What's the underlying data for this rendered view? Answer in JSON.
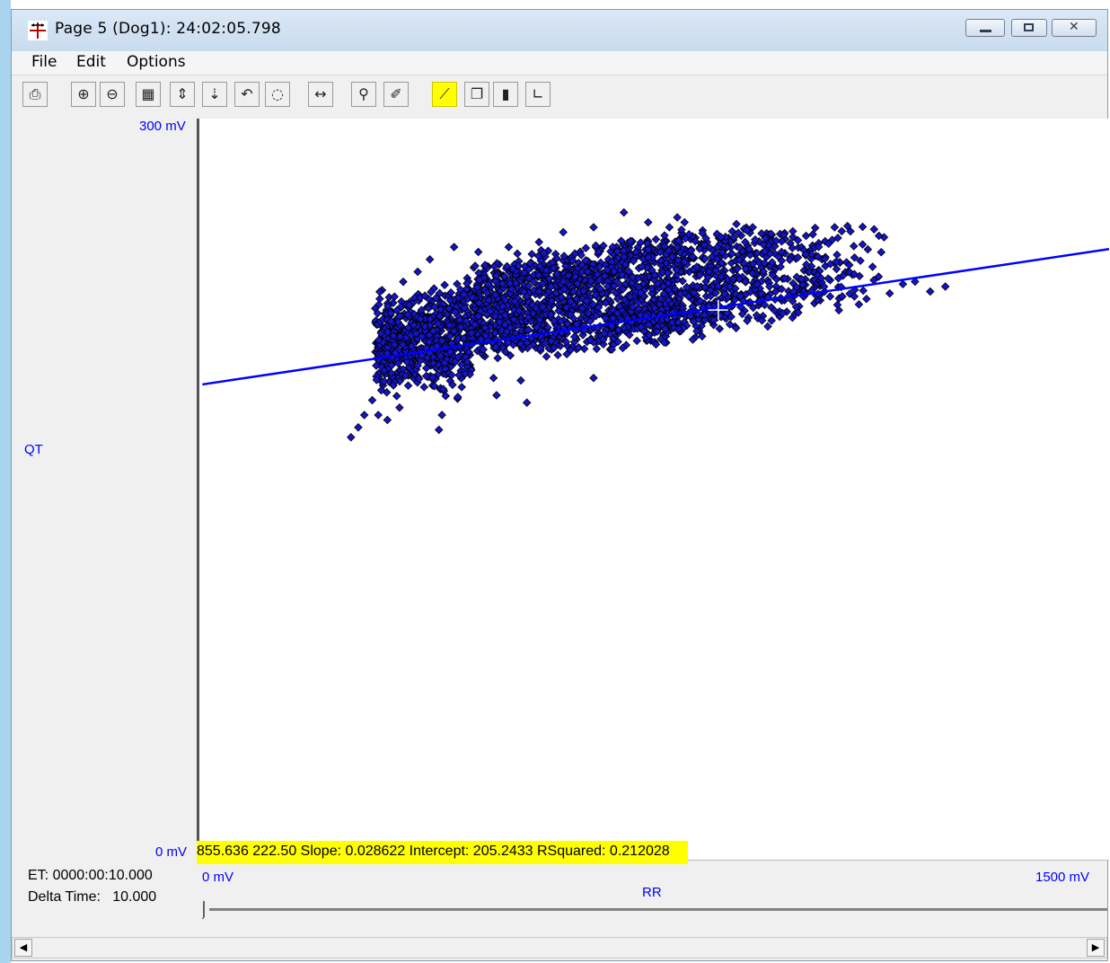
{
  "window": {
    "title": "Page 5 (Dog1): 24:02:05.798",
    "controls": [
      "minimize",
      "maximize",
      "close"
    ]
  },
  "menu": {
    "items": [
      "File",
      "Edit",
      "Options"
    ]
  },
  "toolbar": {
    "buttons": [
      {
        "name": "print-icon",
        "glyph": "⎙"
      },
      {
        "name": "zoom-in-icon",
        "glyph": "⊕"
      },
      {
        "name": "zoom-out-icon",
        "glyph": "⊖"
      },
      {
        "name": "fit-icon",
        "glyph": "▦"
      },
      {
        "name": "expand-vertical-icon",
        "glyph": "⇕"
      },
      {
        "name": "compress-vertical-icon",
        "glyph": "⇣"
      },
      {
        "name": "undo-icon",
        "glyph": "↶"
      },
      {
        "name": "lasso-icon",
        "glyph": "◌"
      },
      {
        "name": "horizontal-arrows-icon",
        "glyph": "↔"
      },
      {
        "name": "marker-icon",
        "glyph": "⚲"
      },
      {
        "name": "eraser-icon",
        "glyph": "✐"
      },
      {
        "name": "regression-line-icon",
        "glyph": "⟋",
        "active": true
      },
      {
        "name": "copy-icon",
        "glyph": "❐"
      },
      {
        "name": "histogram-icon",
        "glyph": "▮"
      },
      {
        "name": "log-scale-icon",
        "glyph": "∟"
      }
    ],
    "highlight_color": "#ffff00"
  },
  "plot": {
    "y_max_label": "300 mV",
    "y_min_label": "0 mV",
    "y_axis_label": "QT",
    "x_min_label": "0 mV",
    "x_max_label": "1500 mV",
    "x_axis_label": "RR",
    "stats_text": "855.636  222.50  Slope: 0.028622  Intercept: 205.2433 RSquared: 0.212028"
  },
  "status": {
    "et": "ET: 0000:00:10.000",
    "delta_time": "Delta Time:   10.000"
  },
  "chart_data": {
    "type": "scatter",
    "xlabel": "RR",
    "ylabel": "QT",
    "xlim": [
      0,
      1500
    ],
    "ylim": [
      0,
      300
    ],
    "x_unit": "mV",
    "y_unit": "mV",
    "point_color": "#1414c8",
    "point_edge_color": "#000000",
    "line_color": "#0000ff",
    "regression": {
      "slope": 0.028622,
      "intercept": 205.2433,
      "r_squared": 0.212028
    },
    "cursor": {
      "x": 855.636,
      "y": 222.5
    },
    "cluster": {
      "x_min": 250,
      "x_max": 1230,
      "y_min": 165,
      "y_max": 265,
      "center_x": 600,
      "center_y": 222
    },
    "points": [
      [
        250,
        171
      ],
      [
        262,
        175
      ],
      [
        272,
        180
      ],
      [
        285,
        186
      ],
      [
        295,
        180
      ],
      [
        310,
        178
      ],
      [
        330,
        183
      ],
      [
        395,
        174
      ],
      [
        400,
        180
      ],
      [
        490,
        188
      ],
      [
        485,
        195
      ],
      [
        540,
        185
      ],
      [
        530,
        194
      ],
      [
        650,
        195
      ],
      [
        668,
        213
      ],
      [
        680,
        216
      ],
      [
        840,
        224
      ],
      [
        775,
        256
      ],
      [
        788,
        260
      ],
      [
        795,
        255
      ],
      [
        870,
        248
      ],
      [
        930,
        249
      ],
      [
        1000,
        245
      ],
      [
        1080,
        237
      ],
      [
        1120,
        236
      ],
      [
        1180,
        234
      ],
      [
        1230,
        232
      ],
      [
        1205,
        230
      ],
      [
        1160,
        233
      ],
      [
        1110,
        240
      ],
      [
        1050,
        242
      ],
      [
        960,
        246
      ],
      [
        900,
        250
      ],
      [
        860,
        252
      ],
      [
        800,
        258
      ],
      [
        740,
        258
      ],
      [
        700,
        262
      ],
      [
        650,
        256
      ],
      [
        600,
        254
      ],
      [
        560,
        250
      ],
      [
        510,
        248
      ],
      [
        460,
        246
      ],
      [
        420,
        248
      ],
      [
        380,
        243
      ],
      [
        360,
        238
      ],
      [
        330,
        220
      ],
      [
        320,
        212
      ],
      [
        310,
        205
      ],
      [
        305,
        198
      ],
      [
        300,
        190
      ],
      [
        320,
        192
      ],
      [
        340,
        196
      ],
      [
        360,
        200
      ],
      [
        380,
        205
      ],
      [
        400,
        210
      ],
      [
        420,
        214
      ],
      [
        440,
        218
      ],
      [
        460,
        220
      ],
      [
        480,
        222
      ],
      [
        500,
        224
      ],
      [
        520,
        226
      ],
      [
        540,
        228
      ],
      [
        560,
        230
      ],
      [
        580,
        232
      ],
      [
        600,
        234
      ],
      [
        620,
        236
      ],
      [
        640,
        238
      ],
      [
        660,
        240
      ],
      [
        680,
        242
      ],
      [
        700,
        244
      ],
      [
        720,
        246
      ],
      [
        740,
        247
      ],
      [
        760,
        246
      ],
      [
        780,
        244
      ],
      [
        800,
        242
      ],
      [
        820,
        240
      ],
      [
        840,
        238
      ],
      [
        860,
        236
      ],
      [
        880,
        235
      ],
      [
        900,
        234
      ],
      [
        920,
        233
      ],
      [
        940,
        232
      ],
      [
        960,
        231
      ],
      [
        980,
        230
      ],
      [
        1000,
        229
      ],
      [
        1020,
        229
      ],
      [
        1040,
        228
      ],
      [
        1060,
        228
      ],
      [
        1080,
        228
      ],
      [
        1100,
        227
      ]
    ]
  }
}
